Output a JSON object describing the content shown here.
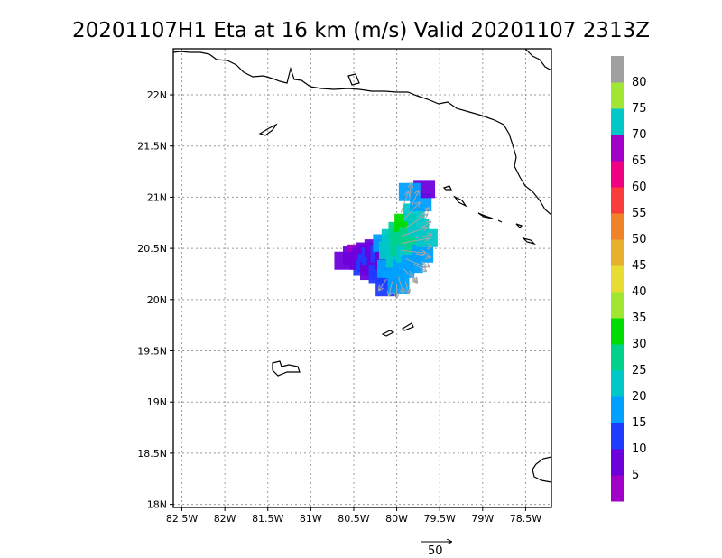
{
  "chart_data": {
    "type": "map-vector-field",
    "title": "20201107H1 Eta at 16 km (m/s) Valid 20201107  2313Z",
    "x_ticks": [
      "82.5W",
      "82W",
      "81.5W",
      "81W",
      "80.5W",
      "80W",
      "79.5W",
      "79W",
      "78.5W"
    ],
    "y_ticks": [
      "18N",
      "18.5N",
      "19N",
      "19.5N",
      "20N",
      "20.5N",
      "21N",
      "21.5N",
      "22N"
    ],
    "xlim": [
      -82.6,
      -78.2
    ],
    "ylim": [
      17.97,
      22.45
    ],
    "grid": true,
    "vector_reference": {
      "value": 50,
      "label": "50"
    },
    "colorbar": {
      "bins": [
        {
          "max": 5,
          "color": "#a000c8",
          "label": "5"
        },
        {
          "max": 10,
          "color": "#6e00dc",
          "label": "10"
        },
        {
          "max": 15,
          "color": "#1e3cff",
          "label": "15"
        },
        {
          "max": 20,
          "color": "#00a0ff",
          "label": "20"
        },
        {
          "max": 25,
          "color": "#00c8c8",
          "label": "25"
        },
        {
          "max": 30,
          "color": "#00d28c",
          "label": "30"
        },
        {
          "max": 35,
          "color": "#00dc00",
          "label": "35"
        },
        {
          "max": 40,
          "color": "#a0e632",
          "label": "40"
        },
        {
          "max": 45,
          "color": "#e6dc32",
          "label": "45"
        },
        {
          "max": 50,
          "color": "#e6af2d",
          "label": "50"
        },
        {
          "max": 55,
          "color": "#f08228",
          "label": "55"
        },
        {
          "max": 60,
          "color": "#fa3c3c",
          "label": "60"
        },
        {
          "max": 65,
          "color": "#f00082",
          "label": "65"
        },
        {
          "max": 70,
          "color": "#a000c8",
          "label": "70"
        },
        {
          "max": 75,
          "color": "#00c8c8",
          "label": "75"
        },
        {
          "max": 80,
          "color": "#a0e632",
          "label": "80"
        },
        {
          "max": 85,
          "color": "#a0a0a0",
          "label": ""
        }
      ]
    },
    "cells": [
      {
        "lon": -80.5,
        "lat": 20.43,
        "v": 8
      },
      {
        "lon": -80.45,
        "lat": 20.45,
        "v": 66
      },
      {
        "lon": -80.42,
        "lat": 20.38,
        "v": 5
      },
      {
        "lon": -80.4,
        "lat": 20.42,
        "v": 9
      },
      {
        "lon": -80.38,
        "lat": 20.32,
        "v": 12
      },
      {
        "lon": -80.35,
        "lat": 20.47,
        "v": 7
      },
      {
        "lon": -80.33,
        "lat": 20.36,
        "v": 11
      },
      {
        "lon": -80.3,
        "lat": 20.28,
        "v": 10
      },
      {
        "lon": -80.28,
        "lat": 20.42,
        "v": 14
      },
      {
        "lon": -80.25,
        "lat": 20.5,
        "v": 8
      },
      {
        "lon": -80.22,
        "lat": 20.34,
        "v": 6
      },
      {
        "lon": -80.2,
        "lat": 20.25,
        "v": 15
      },
      {
        "lon": -80.18,
        "lat": 20.45,
        "v": 13
      },
      {
        "lon": -80.15,
        "lat": 20.55,
        "v": 17
      },
      {
        "lon": -80.13,
        "lat": 20.38,
        "v": 9
      },
      {
        "lon": -80.1,
        "lat": 20.3,
        "v": 18
      },
      {
        "lon": -80.08,
        "lat": 20.48,
        "v": 22
      },
      {
        "lon": -80.05,
        "lat": 20.6,
        "v": 24
      },
      {
        "lon": -80.03,
        "lat": 20.2,
        "v": 16
      },
      {
        "lon": -80.0,
        "lat": 20.4,
        "v": 21
      },
      {
        "lon": -79.97,
        "lat": 20.67,
        "v": 28
      },
      {
        "lon": -79.95,
        "lat": 20.52,
        "v": 26
      },
      {
        "lon": -79.92,
        "lat": 20.3,
        "v": 19
      },
      {
        "lon": -79.9,
        "lat": 20.75,
        "v": 33
      },
      {
        "lon": -79.88,
        "lat": 20.45,
        "v": 23
      },
      {
        "lon": -79.85,
        "lat": 20.62,
        "v": 29
      },
      {
        "lon": -79.82,
        "lat": 20.35,
        "v": 18
      },
      {
        "lon": -79.8,
        "lat": 20.85,
        "v": 24
      },
      {
        "lon": -79.78,
        "lat": 20.55,
        "v": 27
      },
      {
        "lon": -79.75,
        "lat": 20.7,
        "v": 22
      },
      {
        "lon": -79.72,
        "lat": 20.95,
        "v": 20
      },
      {
        "lon": -79.7,
        "lat": 20.45,
        "v": 19
      },
      {
        "lon": -79.68,
        "lat": 21.08,
        "v": 8
      },
      {
        "lon": -79.85,
        "lat": 21.05,
        "v": 18
      },
      {
        "lon": -79.65,
        "lat": 20.6,
        "v": 21
      },
      {
        "lon": -80.12,
        "lat": 20.12,
        "v": 14
      },
      {
        "lon": -79.98,
        "lat": 20.14,
        "v": 17
      },
      {
        "lon": -80.6,
        "lat": 20.38,
        "v": 8
      }
    ],
    "vectors": [
      {
        "lon": -79.95,
        "lat": 20.55,
        "u": 45,
        "v": 8
      },
      {
        "lon": -79.95,
        "lat": 20.62,
        "u": 42,
        "v": 14
      },
      {
        "lon": -79.95,
        "lat": 20.48,
        "u": 40,
        "v": -4
      },
      {
        "lon": -79.9,
        "lat": 20.7,
        "u": 36,
        "v": 22
      },
      {
        "lon": -79.9,
        "lat": 20.4,
        "u": 33,
        "v": -14
      },
      {
        "lon": -79.92,
        "lat": 20.78,
        "u": 26,
        "v": 28
      },
      {
        "lon": -79.92,
        "lat": 20.3,
        "u": 22,
        "v": -22
      },
      {
        "lon": -79.95,
        "lat": 20.85,
        "u": 12,
        "v": 34
      },
      {
        "lon": -79.98,
        "lat": 20.22,
        "u": 8,
        "v": -26
      },
      {
        "lon": -80.05,
        "lat": 20.18,
        "u": -6,
        "v": -24
      },
      {
        "lon": -80.12,
        "lat": 20.2,
        "u": -12,
        "v": -18
      },
      {
        "lon": -79.82,
        "lat": 20.92,
        "u": 10,
        "v": 24
      },
      {
        "lon": -79.85,
        "lat": 20.98,
        "u": 2,
        "v": 26
      },
      {
        "lon": -79.78,
        "lat": 20.6,
        "u": 26,
        "v": 6
      },
      {
        "lon": -79.78,
        "lat": 20.45,
        "u": 24,
        "v": -6
      },
      {
        "lon": -79.8,
        "lat": 20.35,
        "u": 20,
        "v": -12
      },
      {
        "lon": -79.75,
        "lat": 20.8,
        "u": 18,
        "v": 16
      },
      {
        "lon": -79.85,
        "lat": 20.28,
        "u": 12,
        "v": -18
      },
      {
        "lon": -79.9,
        "lat": 20.18,
        "u": 6,
        "v": -20
      },
      {
        "lon": -80.0,
        "lat": 20.15,
        "u": 0,
        "v": -22
      },
      {
        "lon": -79.72,
        "lat": 20.7,
        "u": 16,
        "v": 10
      },
      {
        "lon": -79.72,
        "lat": 20.52,
        "u": 18,
        "v": 0
      },
      {
        "lon": -79.72,
        "lat": 20.38,
        "u": 14,
        "v": -10
      }
    ]
  }
}
